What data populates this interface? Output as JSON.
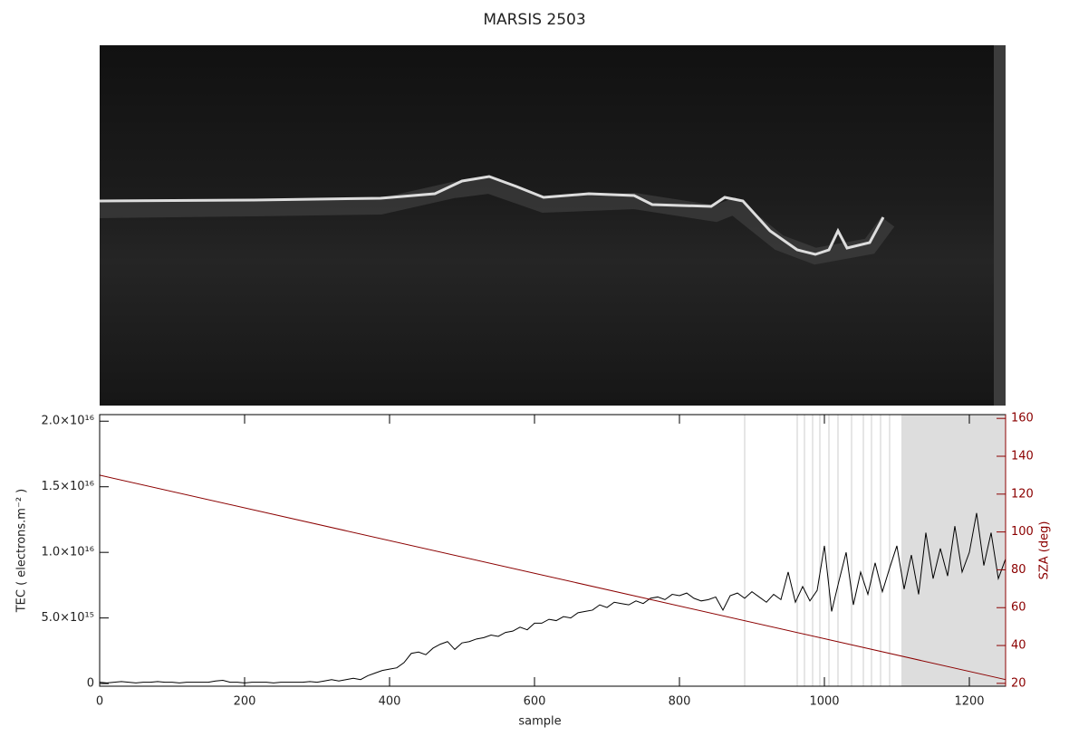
{
  "chart_data": {
    "type": "line",
    "title": "MARSIS 2503",
    "x_label": "sample",
    "y_label": "TEC ( electrons.m⁻² )",
    "y2_label": "SZA (deg)",
    "xlim": [
      0,
      1250
    ],
    "xticks": [
      0,
      200,
      400,
      600,
      800,
      1000,
      1200
    ],
    "ylim": [
      -200000000000000.0,
      2.05e+16
    ],
    "yticks": [
      0,
      {
        "value": 5000000000000000.0,
        "label": "5.0×10¹⁵"
      },
      {
        "value": 1e+16,
        "label": "1.0×10¹⁶"
      },
      {
        "value": 1.5e+16,
        "label": "1.5×10¹⁶"
      },
      {
        "value": 2e+16,
        "label": "2.0×10¹⁶"
      }
    ],
    "y2lim": [
      18.5,
      162
    ],
    "y2ticks": [
      20,
      40,
      60,
      80,
      100,
      120,
      140,
      160
    ],
    "x": [
      0,
      10,
      20,
      30,
      40,
      50,
      60,
      70,
      80,
      90,
      100,
      110,
      120,
      130,
      140,
      150,
      160,
      170,
      180,
      190,
      200,
      210,
      220,
      230,
      240,
      250,
      260,
      270,
      280,
      290,
      300,
      310,
      320,
      330,
      340,
      350,
      360,
      370,
      380,
      390,
      400,
      410,
      420,
      430,
      440,
      450,
      460,
      470,
      480,
      490,
      500,
      510,
      520,
      530,
      540,
      550,
      560,
      570,
      580,
      590,
      600,
      610,
      620,
      630,
      640,
      650,
      660,
      670,
      680,
      690,
      700,
      710,
      720,
      730,
      740,
      750,
      760,
      770,
      780,
      790,
      800,
      810,
      820,
      830,
      840,
      850,
      860,
      870,
      880,
      890,
      900,
      910,
      920,
      930,
      940,
      950,
      960,
      970,
      980,
      990,
      1000,
      1010,
      1020,
      1030,
      1040,
      1050,
      1060,
      1070,
      1080,
      1090,
      1100,
      1110,
      1120,
      1130,
      1140,
      1150,
      1160,
      1170,
      1180,
      1190,
      1200,
      1210,
      1220,
      1230,
      1240,
      1250
    ],
    "series": [
      {
        "color": "#000000",
        "values": [
          100000000000000.0,
          50000000000000.0,
          100000000000000.0,
          150000000000000.0,
          100000000000000.0,
          50000000000000.0,
          100000000000000.0,
          100000000000000.0,
          150000000000000.0,
          100000000000000.0,
          100000000000000.0,
          50000000000000.0,
          100000000000000.0,
          100000000000000.0,
          100000000000000.0,
          100000000000000.0,
          200000000000000.0,
          250000000000000.0,
          100000000000000.0,
          100000000000000.0,
          50000000000000.0,
          100000000000000.0,
          100000000000000.0,
          100000000000000.0,
          50000000000000.0,
          100000000000000.0,
          100000000000000.0,
          100000000000000.0,
          100000000000000.0,
          150000000000000.0,
          100000000000000.0,
          200000000000000.0,
          300000000000000.0,
          200000000000000.0,
          300000000000000.0,
          400000000000000.0,
          300000000000000.0,
          600000000000000.0,
          800000000000000.0,
          1000000000000000.0,
          1100000000000000.0,
          1200000000000000.0,
          1600000000000000.0,
          2300000000000000.0,
          2400000000000000.0,
          2200000000000000.0,
          2700000000000000.0,
          3000000000000000.0,
          3200000000000000.0,
          2600000000000000.0,
          3100000000000000.0,
          3200000000000000.0,
          3400000000000000.0,
          3500000000000000.0,
          3700000000000000.0,
          3600000000000000.0,
          3900000000000000.0,
          4000000000000000.0,
          4300000000000000.0,
          4100000000000000.0,
          4600000000000000.0,
          4600000000000000.0,
          4900000000000000.0,
          4800000000000000.0,
          5100000000000000.0,
          5000000000000000.0,
          5400000000000000.0,
          5500000000000000.0,
          5600000000000000.0,
          6000000000000000.0,
          5800000000000000.0,
          6200000000000000.0,
          6100000000000000.0,
          6000000000000000.0,
          6300000000000000.0,
          6100000000000000.0,
          6500000000000000.0,
          6600000000000000.0,
          6400000000000000.0,
          6800000000000000.0,
          6700000000000000.0,
          6900000000000000.0,
          6500000000000000.0,
          6300000000000000.0,
          6400000000000000.0,
          6600000000000000.0,
          5600000000000000.0,
          6700000000000000.0,
          6900000000000000.0,
          6500000000000000.0,
          7000000000000000.0,
          6600000000000000.0,
          6200000000000000.0,
          6800000000000000.0,
          6400000000000000.0,
          8500000000000000.0,
          6200000000000000.0,
          7400000000000000.0,
          6300000000000000.0,
          7100000000000000.0,
          1.05e+16,
          5500000000000000.0,
          7800000000000000.0,
          1e+16,
          6000000000000000.0,
          8500000000000000.0,
          6800000000000000.0,
          9200000000000000.0,
          7000000000000000.0,
          8800000000000000.0,
          1.05e+16,
          7200000000000000.0,
          9800000000000000.0,
          6800000000000000.0,
          1.15e+16,
          8000000000000000.0,
          1.03e+16,
          8200000000000000.0,
          1.2e+16,
          8500000000000000.0,
          1e+16,
          1.3e+16,
          9000000000000000.0,
          1.15e+16,
          8000000000000000.0,
          9500000000000000.0
        ]
      },
      {
        "color": "#8b0000",
        "axis": "y2",
        "x": [
          0,
          1250
        ],
        "values": [
          130,
          22
        ]
      }
    ]
  }
}
